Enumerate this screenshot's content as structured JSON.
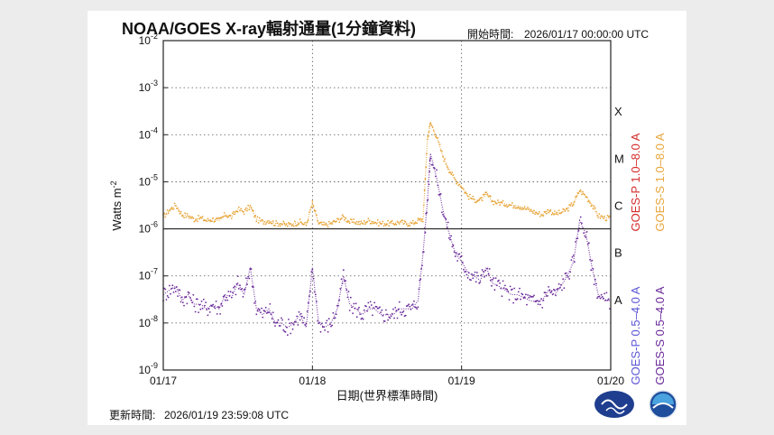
{
  "chart_data": {
    "type": "line",
    "title": "NOAA/GOES X-ray輻射通量(1分鐘資料)",
    "start_time_label": "開始時間:",
    "start_time": "2026/01/17 00:00:00 UTC",
    "updated_label": "更新時間:",
    "updated_time": "2026/01/19 23:59:08 UTC",
    "xlabel": "日期(世界標準時間)",
    "ylabel": "Watts m",
    "ylabel_exponent": "-2",
    "yscale": "log",
    "ylim": [
      1e-09,
      0.01
    ],
    "xlim": [
      0,
      72
    ],
    "x_unit": "hours since 2026/01/17 00:00 UTC",
    "grid": true,
    "x_ticks": [
      {
        "x": 0,
        "label": "01/17"
      },
      {
        "x": 24,
        "label": "01/18"
      },
      {
        "x": 48,
        "label": "01/19"
      },
      {
        "x": 72,
        "label": "01/20"
      }
    ],
    "y_ticks": [
      {
        "exp": -2,
        "base": "10",
        "sup": "-2"
      },
      {
        "exp": -3,
        "base": "10",
        "sup": "-3"
      },
      {
        "exp": -4,
        "base": "10",
        "sup": "-4"
      },
      {
        "exp": -5,
        "base": "10",
        "sup": "-5"
      },
      {
        "exp": -6,
        "base": "10",
        "sup": "-6"
      },
      {
        "exp": -7,
        "base": "10",
        "sup": "-7"
      },
      {
        "exp": -8,
        "base": "10",
        "sup": "-8"
      },
      {
        "exp": -9,
        "base": "10",
        "sup": "-9"
      }
    ],
    "flare_classes": [
      {
        "label": "X",
        "exp": -3.5
      },
      {
        "label": "M",
        "exp": -4.5
      },
      {
        "label": "C",
        "exp": -5.5
      },
      {
        "label": "B",
        "exp": -6.5
      },
      {
        "label": "A",
        "exp": -7.5
      }
    ],
    "class_boundary": 1e-06,
    "legend": [
      {
        "label": "GOES-P 1.0–8.0 A",
        "color": "#d42a2a"
      },
      {
        "label": "GOES-S 1.0–8.0 A",
        "color": "#e8a63c"
      },
      {
        "label": "GOES-P 0.5–4.0 A",
        "color": "#5b55d6"
      },
      {
        "label": "GOES-S 0.5–4.0 A",
        "color": "#6a2a9a"
      }
    ],
    "series": [
      {
        "name": "GOES-S 1.0–8.0 A",
        "color": "#e8a63c",
        "x": [
          0,
          1,
          2,
          3,
          4,
          5,
          6,
          7,
          8,
          9,
          10,
          11,
          12,
          13,
          14,
          15,
          16,
          17,
          18,
          19,
          20,
          21,
          22,
          23,
          24,
          25,
          26,
          27,
          28,
          29,
          30,
          31,
          32,
          33,
          34,
          35,
          36,
          37,
          38,
          39,
          40,
          41,
          41.8,
          42.5,
          43,
          44,
          45,
          46,
          47,
          48,
          49,
          50,
          51,
          52,
          53,
          54,
          55,
          56,
          57,
          58,
          59,
          60,
          61,
          62,
          63,
          64,
          65,
          66,
          67,
          68,
          69,
          70,
          71,
          72
        ],
        "y": [
          1.8e-06,
          2.5e-06,
          3.2e-06,
          2e-06,
          1.9e-06,
          1.6e-06,
          1.7e-06,
          1.5e-06,
          1.6e-06,
          1.5e-06,
          2e-06,
          1.8e-06,
          2.6e-06,
          2.3e-06,
          3e-06,
          1.6e-06,
          1.4e-06,
          1.5e-06,
          1.3e-06,
          1.3e-06,
          1.2e-06,
          1.3e-06,
          1.4e-06,
          1.2e-06,
          3.5e-06,
          1.3e-06,
          1.2e-06,
          1.3e-06,
          1.5e-06,
          1.8e-06,
          1.4e-06,
          1.4e-06,
          1.3e-06,
          1.5e-06,
          1.4e-06,
          1.3e-06,
          1.3e-06,
          1.3e-06,
          1.4e-06,
          1.3e-06,
          1.3e-06,
          1.5e-06,
          1.6e-06,
          8e-05,
          0.00018,
          9e-05,
          3.5e-05,
          1.8e-05,
          1.1e-05,
          8e-06,
          5e-06,
          4.2e-06,
          4e-06,
          5.5e-06,
          3.8e-06,
          3.6e-06,
          3.4e-06,
          3.2e-06,
          3.1e-06,
          2.8e-06,
          2.5e-06,
          2.2e-06,
          2e-06,
          2.5e-06,
          2.1e-06,
          2.2e-06,
          2.6e-06,
          3.5e-06,
          6.5e-06,
          5e-06,
          3.2e-06,
          1.9e-06,
          1.7e-06,
          1.7e-06
        ]
      },
      {
        "name": "GOES-S 0.5–4.0 A",
        "color": "#6a2a9a",
        "x": [
          0,
          1,
          2,
          3,
          4,
          5,
          6,
          7,
          8,
          9,
          10,
          11,
          12,
          13,
          14,
          15,
          16,
          17,
          18,
          19,
          20,
          21,
          22,
          23,
          24,
          25,
          26,
          27,
          28,
          29,
          30,
          31,
          32,
          33,
          34,
          35,
          36,
          37,
          38,
          39,
          40,
          41,
          41.8,
          42.5,
          43,
          44,
          45,
          46,
          47,
          48,
          49,
          50,
          51,
          52,
          53,
          54,
          55,
          56,
          57,
          58,
          59,
          60,
          61,
          62,
          63,
          64,
          65,
          66,
          67,
          68,
          69,
          70,
          71,
          72
        ],
        "y": [
          4e-08,
          5e-08,
          6e-08,
          3e-08,
          4e-08,
          2.5e-08,
          2.5e-08,
          2e-08,
          2.5e-08,
          2e-08,
          4e-08,
          3.5e-08,
          7e-08,
          4e-08,
          1.5e-07,
          2e-08,
          1.5e-08,
          2e-08,
          1e-08,
          1e-08,
          8e-09,
          1e-08,
          1.5e-08,
          8e-09,
          1.5e-07,
          1e-08,
          8e-09,
          1e-08,
          2e-08,
          1e-07,
          2.5e-08,
          2e-08,
          1.5e-08,
          2e-08,
          2e-08,
          1.5e-08,
          1.5e-08,
          1.5e-08,
          2e-08,
          2e-08,
          2e-08,
          3e-08,
          3e-07,
          4e-06,
          4e-05,
          1.2e-05,
          2.5e-06,
          8e-07,
          3e-07,
          2e-07,
          1.2e-07,
          1e-07,
          8e-08,
          1.5e-07,
          7e-08,
          6e-08,
          5e-08,
          4e-08,
          4e-08,
          3.5e-08,
          3e-08,
          2.8e-08,
          3e-08,
          5e-08,
          4e-08,
          6e-08,
          1e-07,
          2e-07,
          1.5e-06,
          8e-07,
          1.5e-07,
          4e-08,
          3e-08,
          3e-08
        ]
      }
    ]
  }
}
